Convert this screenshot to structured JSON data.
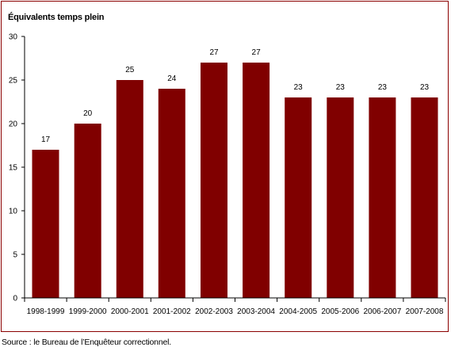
{
  "chart_data": {
    "type": "bar",
    "ylabel": "Équivalents temps plein",
    "categories": [
      "1998-1999",
      "1999-2000",
      "2000-2001",
      "2001-2002",
      "2002-2003",
      "2003-2004",
      "2004-2005",
      "2005-2006",
      "2006-2007",
      "2007-2008"
    ],
    "values": [
      17,
      20,
      25,
      24,
      27,
      27,
      23,
      23,
      23,
      23
    ],
    "ylim": [
      0,
      30
    ],
    "yticks": [
      0,
      5,
      10,
      15,
      20,
      25,
      30
    ],
    "grid": false,
    "legend": "none",
    "data_labels": true,
    "bar_color": "#800000"
  },
  "source": "Source : le Bureau de l’Enquêteur correctionnel."
}
